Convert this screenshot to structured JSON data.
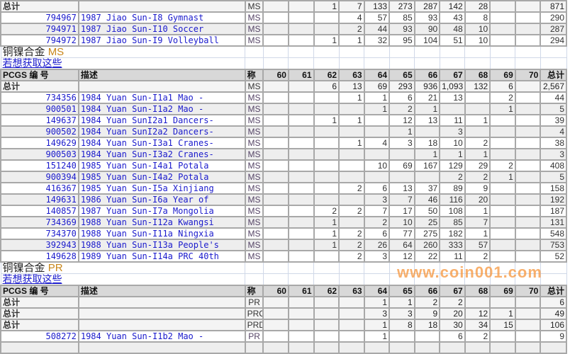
{
  "columns": {
    "pcgs": "PCGS 编 号",
    "desc": "描述",
    "grade": "称",
    "grades": [
      "60",
      "61",
      "62",
      "63",
      "64",
      "65",
      "66",
      "67",
      "68",
      "69",
      "70"
    ],
    "total": "总计"
  },
  "total_label": "总计",
  "get_link": "若想获取这些",
  "watermark": "www.coin001.com",
  "colors": {
    "link": "#1a1acc",
    "header_bg": "#d8d8d8",
    "alt_row": "#eeeeee",
    "grid": "#a8a8a8",
    "grade_accent": "#c8861a"
  },
  "top_rows": [
    {
      "type": "total",
      "grade": "MS",
      "vals": [
        "",
        "",
        "1",
        "7",
        "133",
        "273",
        "287",
        "142",
        "28",
        "",
        ""
      ],
      "total": "871"
    },
    {
      "type": "item",
      "id": "794967",
      "desc": "1987 Jiao Sun-I8 Gymnast",
      "grade": "MS",
      "vals": [
        "",
        "",
        "",
        "4",
        "57",
        "85",
        "93",
        "43",
        "8",
        "",
        ""
      ],
      "total": "290"
    },
    {
      "type": "item",
      "id": "794971",
      "desc": "1987 Jiao Sun-I10 Soccer",
      "grade": "MS",
      "vals": [
        "",
        "",
        "",
        "2",
        "44",
        "93",
        "90",
        "48",
        "10",
        "",
        ""
      ],
      "total": "287"
    },
    {
      "type": "item",
      "id": "794972",
      "desc": "1987 Jiao Sun-I9 Volleyball",
      "grade": "MS",
      "vals": [
        "",
        "",
        "1",
        "1",
        "32",
        "95",
        "104",
        "51",
        "10",
        "",
        ""
      ],
      "total": "294"
    }
  ],
  "sections": [
    {
      "title": "铜镍合金",
      "grade_type": "MS",
      "rows": [
        {
          "type": "total",
          "grade": "MS",
          "vals": [
            "",
            "",
            "6",
            "13",
            "69",
            "293",
            "936",
            "1,093",
            "132",
            "6",
            ""
          ],
          "total": "2,567"
        },
        {
          "type": "item",
          "id": "734356",
          "desc": "1984 Yuan Sun-I1a1 Mao -",
          "grade": "MS",
          "vals": [
            "",
            "",
            "",
            "1",
            "1",
            "6",
            "21",
            "13",
            "",
            "2",
            ""
          ],
          "total": "44"
        },
        {
          "type": "item",
          "id": "900501",
          "desc": "1984 Yuan Sun-I1a2 Mao -",
          "grade": "MS",
          "vals": [
            "",
            "",
            "",
            "",
            "1",
            "2",
            "1",
            "",
            "",
            "1",
            ""
          ],
          "total": "5"
        },
        {
          "type": "item",
          "id": "149637",
          "desc": "1984 Yuan SunI2a1 Dancers-",
          "grade": "MS",
          "vals": [
            "",
            "",
            "1",
            "1",
            "",
            "12",
            "13",
            "11",
            "1",
            "",
            ""
          ],
          "total": "39"
        },
        {
          "type": "item",
          "id": "900502",
          "desc": "1984 Yuan SunI2a2 Dancers-",
          "grade": "MS",
          "vals": [
            "",
            "",
            "",
            "",
            "",
            "1",
            "",
            "3",
            "",
            "",
            ""
          ],
          "total": "4"
        },
        {
          "type": "item",
          "id": "149629",
          "desc": "1984 Yuan Sun-I3a1 Cranes-",
          "grade": "MS",
          "vals": [
            "",
            "",
            "",
            "1",
            "4",
            "3",
            "18",
            "10",
            "2",
            "",
            ""
          ],
          "total": "38"
        },
        {
          "type": "item",
          "id": "900503",
          "desc": "1984 Yuan Sun-I3a2 Cranes-",
          "grade": "MS",
          "vals": [
            "",
            "",
            "",
            "",
            "",
            "",
            "1",
            "1",
            "1",
            "",
            ""
          ],
          "total": "3"
        },
        {
          "type": "item",
          "id": "151240",
          "desc": "1985 Yuan Sun-I4a1 Potala",
          "grade": "MS",
          "vals": [
            "",
            "",
            "",
            "",
            "10",
            "69",
            "167",
            "129",
            "29",
            "2",
            ""
          ],
          "total": "408"
        },
        {
          "type": "item",
          "id": "900394",
          "desc": "1985 Yuan Sun-I4a2 Potala",
          "grade": "MS",
          "vals": [
            "",
            "",
            "",
            "",
            "",
            "",
            "",
            "2",
            "2",
            "1",
            ""
          ],
          "total": "5"
        },
        {
          "type": "item",
          "id": "416367",
          "desc": "1985 Yuan Sun-I5a Xinjiang",
          "grade": "MS",
          "vals": [
            "",
            "",
            "",
            "2",
            "6",
            "13",
            "37",
            "89",
            "9",
            "",
            ""
          ],
          "total": "158"
        },
        {
          "type": "item",
          "id": "149631",
          "desc": "1986 Yuan Sun-I6a Year of",
          "grade": "MS",
          "vals": [
            "",
            "",
            "",
            "",
            "3",
            "7",
            "46",
            "116",
            "20",
            "",
            ""
          ],
          "total": "192"
        },
        {
          "type": "item",
          "id": "140857",
          "desc": "1987 Yuan Sun-I7a Mongolia",
          "grade": "MS",
          "vals": [
            "",
            "",
            "2",
            "2",
            "7",
            "17",
            "50",
            "108",
            "1",
            "",
            ""
          ],
          "total": "187"
        },
        {
          "type": "item",
          "id": "734369",
          "desc": "1988 Yuan Sun-I12a Kwangsi",
          "grade": "MS",
          "vals": [
            "",
            "",
            "1",
            "",
            "2",
            "10",
            "25",
            "85",
            "7",
            "",
            ""
          ],
          "total": "131"
        },
        {
          "type": "item",
          "id": "734370",
          "desc": "1988 Yuan Sun-I11a Ningxia",
          "grade": "MS",
          "vals": [
            "",
            "",
            "1",
            "2",
            "6",
            "77",
            "275",
            "182",
            "1",
            "",
            ""
          ],
          "total": "548"
        },
        {
          "type": "item",
          "id": "392943",
          "desc": "1988 Yuan Sun-I13a People's",
          "grade": "MS",
          "vals": [
            "",
            "",
            "1",
            "2",
            "26",
            "64",
            "260",
            "333",
            "57",
            "",
            ""
          ],
          "total": "753"
        },
        {
          "type": "item",
          "id": "149628",
          "desc": "1989 Yuan Sun-I14a PRC 40th",
          "grade": "MS",
          "vals": [
            "",
            "",
            "",
            "2",
            "3",
            "12",
            "22",
            "11",
            "2",
            "",
            ""
          ],
          "total": "52"
        }
      ]
    },
    {
      "title": "铜镍合金",
      "grade_type": "PR",
      "rows": [
        {
          "type": "total",
          "grade": "PR",
          "vals": [
            "",
            "",
            "",
            "",
            "1",
            "1",
            "2",
            "2",
            "",
            "",
            ""
          ],
          "total": "6"
        },
        {
          "type": "total",
          "grade": "PRC",
          "vals": [
            "",
            "",
            "",
            "",
            "3",
            "3",
            "9",
            "20",
            "12",
            "1",
            ""
          ],
          "total": "49"
        },
        {
          "type": "total",
          "grade": "PRD",
          "vals": [
            "",
            "",
            "",
            "",
            "1",
            "8",
            "18",
            "30",
            "34",
            "15",
            ""
          ],
          "total": "106"
        },
        {
          "type": "item",
          "id": "508272",
          "desc": "1984 Yuan Sun-I1b2 Mao -",
          "grade": "PR",
          "vals": [
            "",
            "",
            "",
            "",
            "1",
            "",
            "",
            "6",
            "2",
            "",
            ""
          ],
          "total": "9"
        },
        {
          "type": "item",
          "id": "",
          "desc": "",
          "grade": "",
          "vals": [
            "",
            "",
            "",
            "",
            "",
            "",
            "",
            "",
            "",
            "",
            ""
          ],
          "total": ""
        }
      ]
    }
  ]
}
